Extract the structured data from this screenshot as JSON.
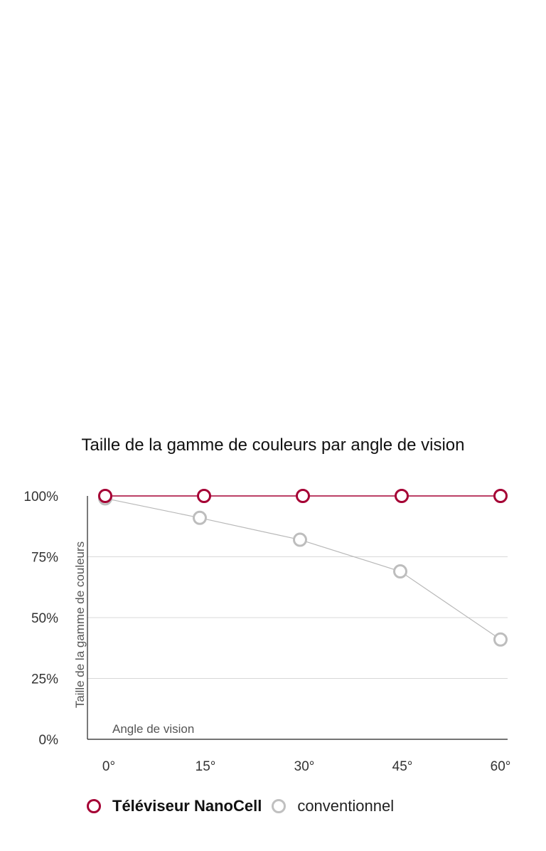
{
  "chart_data": {
    "type": "line",
    "title": "Taille de la gamme de couleurs par angle de vision",
    "xlabel": "Angle de vision",
    "ylabel": "Taille de la gamme de couleurs",
    "categories": [
      "0°",
      "15°",
      "30°",
      "45°",
      "60°"
    ],
    "y_ticks": [
      "100%",
      "75%",
      "50%",
      "25%",
      "0%"
    ],
    "ylim": [
      0,
      100
    ],
    "grid": true,
    "series": [
      {
        "name": "Téléviseur NanoCell",
        "values": [
          100,
          100,
          100,
          100,
          100
        ],
        "color": "#a50034"
      },
      {
        "name": "conventionnel",
        "values": [
          99,
          91,
          82,
          69,
          41
        ],
        "color": "#b8b8b8"
      }
    ],
    "legend_position": "bottom"
  },
  "legend": {
    "items": [
      {
        "label": "Téléviseur NanoCell",
        "color": "#a50034"
      },
      {
        "label": "conventionnel",
        "color": "#c0c0c0"
      }
    ]
  }
}
